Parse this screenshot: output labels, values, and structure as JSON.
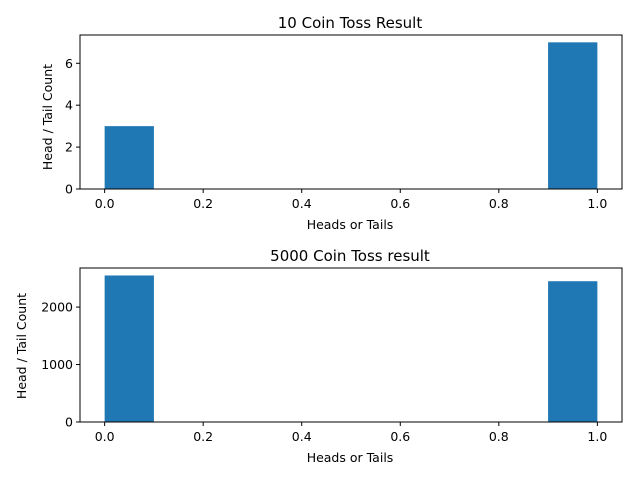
{
  "chart_data": [
    {
      "type": "bar",
      "title": "10 Coin Toss Result",
      "xlabel": "Heads or Tails",
      "ylabel": "Head / Tail Count",
      "xlim": [
        -0.05,
        1.05
      ],
      "ylim": [
        0,
        7.35
      ],
      "xticks": [
        0.0,
        0.2,
        0.4,
        0.6,
        0.8,
        1.0
      ],
      "xtick_labels": [
        "0.0",
        "0.2",
        "0.4",
        "0.6",
        "0.8",
        "1.0"
      ],
      "yticks": [
        0,
        2,
        4,
        6
      ],
      "ytick_labels": [
        "0",
        "2",
        "4",
        "6"
      ],
      "bar_color": "#1f77b4",
      "bins": [
        {
          "x0": 0.0,
          "x1": 0.1,
          "value": 3
        },
        {
          "x0": 0.9,
          "x1": 1.0,
          "value": 7
        }
      ]
    },
    {
      "type": "bar",
      "title": "5000 Coin Toss result",
      "xlabel": "Heads or Tails",
      "ylabel": "Head / Tail Count",
      "xlim": [
        -0.05,
        1.05
      ],
      "ylim": [
        0,
        2680
      ],
      "xticks": [
        0.0,
        0.2,
        0.4,
        0.6,
        0.8,
        1.0
      ],
      "xtick_labels": [
        "0.0",
        "0.2",
        "0.4",
        "0.6",
        "0.8",
        "1.0"
      ],
      "yticks": [
        0,
        1000,
        2000
      ],
      "ytick_labels": [
        "0",
        "1000",
        "2000"
      ],
      "bar_color": "#1f77b4",
      "bins": [
        {
          "x0": 0.0,
          "x1": 0.1,
          "value": 2550
        },
        {
          "x0": 0.9,
          "x1": 1.0,
          "value": 2450
        }
      ]
    }
  ]
}
